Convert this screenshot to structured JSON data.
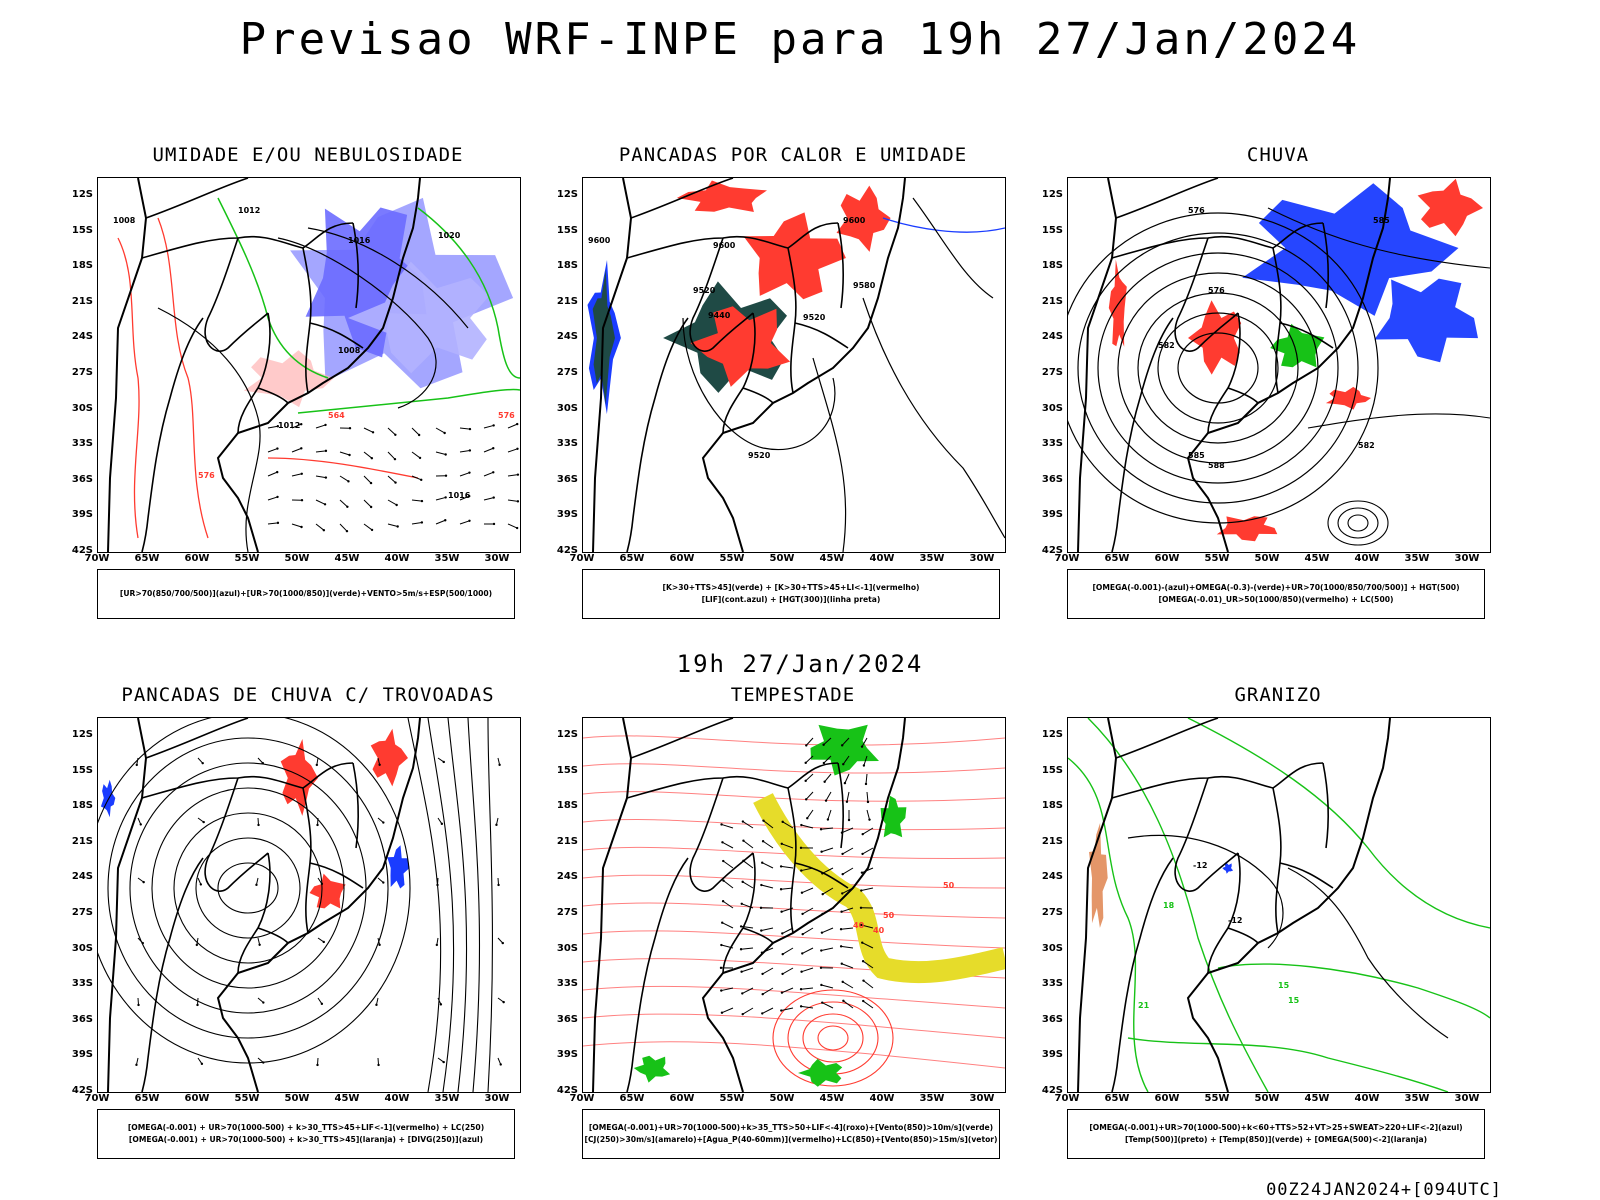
{
  "title": "Previsao WRF-INPE  para 19h 27/Jan/2024",
  "mid_time": "19h 27/Jan/2024",
  "footer": "00Z24JAN2024+[094UTC]",
  "lat_ticks": [
    "12S",
    "15S",
    "18S",
    "21S",
    "24S",
    "27S",
    "30S",
    "33S",
    "36S",
    "39S",
    "42S"
  ],
  "lon_ticks": [
    "70W",
    "65W",
    "60W",
    "55W",
    "50W",
    "45W",
    "40W",
    "35W",
    "30W"
  ],
  "colors": {
    "blue": "#1a3cff",
    "green": "#17c217",
    "red": "#ff3b30",
    "darkteal": "#1f4a45",
    "yellow": "#e6dc2a",
    "lavender": "#9a9cff",
    "orange": "#ff8800"
  },
  "panels": [
    {
      "title": "UMIDADE E/OU NEBULOSIDADE",
      "legend": [
        "[UR>70(850/700/500)](azul)+[UR>70(1000/850)](verde)+VENTO>5m/s+ESP(500/1000)"
      ],
      "labels": [
        "1008",
        "1012",
        "1016",
        "1020",
        "1008",
        "1012",
        "1016",
        "576",
        "576",
        "564"
      ]
    },
    {
      "title": "PANCADAS POR CALOR E UMIDADE",
      "legend": [
        "[K>30+TTS>45](verde) + [K>30+TTS>45+LI<-1](vermelho)",
        "[LIF](cont.azul) + [HGT(300)](linha preta)"
      ],
      "labels": [
        "9600",
        "9600",
        "9520",
        "9440",
        "9520",
        "9580",
        "9600",
        "9520"
      ]
    },
    {
      "title": "CHUVA",
      "legend": [
        "[OMEGA(-0.001)-(azul)+OMEGA(-0.3)-(verde)+UR>70(1000/850/700/500)] + HGT(500)",
        "[OMEGA(-0.01)_UR>50(1000/850)(vermelho) + LC(500)"
      ],
      "labels": [
        "576",
        "582",
        "585",
        "588",
        "576",
        "582",
        "585"
      ]
    },
    {
      "title": "PANCADAS DE CHUVA C/ TROVOADAS",
      "legend": [
        "[OMEGA(-0.001) + UR>70(1000-500) + k>30_TTS>45+LIF<-1](vermelho) + LC(250)",
        "[OMEGA(-0.001) + UR>70(1000-500) + k>30_TTS>45](laranja) + [DIVG(250)](azul)"
      ],
      "labels": []
    },
    {
      "title": "TEMPESTADE",
      "legend": [
        "[OMEGA(-0.001)+UR>70(1000-500)+k>35_TTS>50+LIF<-4](roxo)+[Vento(850)>10m/s](verde)",
        "[CJ(250)>30m/s](amarelo)+[Agua_P(40-60mm)](vermelho)+LC(850)+[Vento(850)>15m/s](vetor)"
      ],
      "labels": [
        "50",
        "40",
        "50",
        "40"
      ]
    },
    {
      "title": "GRANIZO",
      "legend": [
        "[OMEGA(-0.001)+UR>70(1000-500)+k<60+TTS>52+VT>25+SWEAT>220+LIF<-2](azul)",
        "[Temp(500)](preto) + [Temp(850)](verde) + [OMEGA(500)<-2](laranja)"
      ],
      "labels": [
        "-12",
        "-12",
        "15",
        "18",
        "21",
        "15"
      ]
    }
  ]
}
